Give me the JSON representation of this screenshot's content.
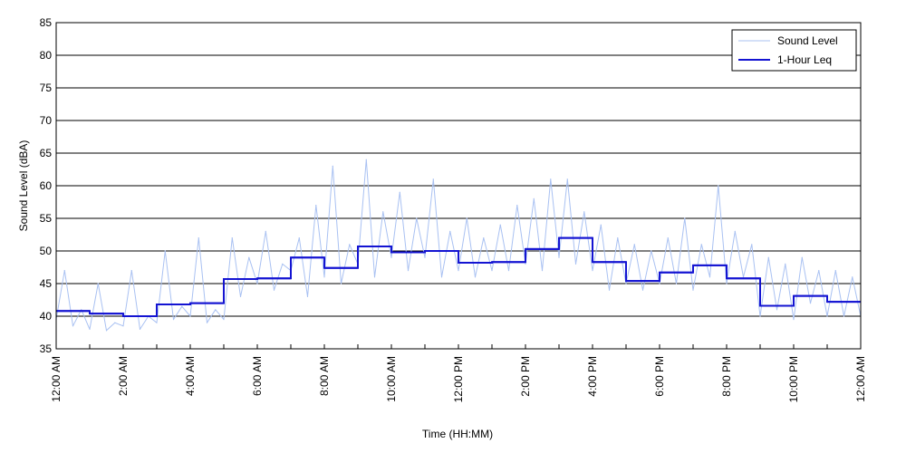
{
  "chart_data": {
    "type": "line",
    "xlabel": "Time (HH:MM)",
    "ylabel": "Sound Level (dBA)",
    "ylim": [
      35,
      85
    ],
    "xlim_hours": [
      0,
      24
    ],
    "y_ticks": [
      35,
      40,
      45,
      50,
      55,
      60,
      65,
      70,
      75,
      80,
      85
    ],
    "x_ticks": [
      {
        "hour": 0,
        "label": "12:00 AM"
      },
      {
        "hour": 2,
        "label": "2:00 AM"
      },
      {
        "hour": 4,
        "label": "4:00 AM"
      },
      {
        "hour": 6,
        "label": "6:00 AM"
      },
      {
        "hour": 8,
        "label": "8:00 AM"
      },
      {
        "hour": 10,
        "label": "10:00 AM"
      },
      {
        "hour": 12,
        "label": "12:00 PM"
      },
      {
        "hour": 14,
        "label": "2:00 PM"
      },
      {
        "hour": 16,
        "label": "4:00 PM"
      },
      {
        "hour": 18,
        "label": "6:00 PM"
      },
      {
        "hour": 20,
        "label": "8:00 PM"
      },
      {
        "hour": 22,
        "label": "10:00 PM"
      },
      {
        "hour": 24,
        "label": "12:00 AM"
      }
    ],
    "grid": "horizontal",
    "legend_position": "top-right",
    "series": [
      {
        "name": "Sound Level",
        "color": "#a9c1f2",
        "style": "thin-line",
        "x_hours": [
          0.0,
          0.25,
          0.5,
          0.75,
          1.0,
          1.25,
          1.5,
          1.75,
          2.0,
          2.25,
          2.5,
          2.75,
          3.0,
          3.25,
          3.5,
          3.75,
          4.0,
          4.25,
          4.5,
          4.75,
          5.0,
          5.25,
          5.5,
          5.75,
          6.0,
          6.25,
          6.5,
          6.75,
          7.0,
          7.25,
          7.5,
          7.75,
          8.0,
          8.25,
          8.5,
          8.75,
          9.0,
          9.25,
          9.5,
          9.75,
          10.0,
          10.25,
          10.5,
          10.75,
          11.0,
          11.25,
          11.5,
          11.75,
          12.0,
          12.25,
          12.5,
          12.75,
          13.0,
          13.25,
          13.5,
          13.75,
          14.0,
          14.25,
          14.5,
          14.75,
          15.0,
          15.25,
          15.5,
          15.75,
          16.0,
          16.25,
          16.5,
          16.75,
          17.0,
          17.25,
          17.5,
          17.75,
          18.0,
          18.25,
          18.5,
          18.75,
          19.0,
          19.25,
          19.5,
          19.75,
          20.0,
          20.25,
          20.5,
          20.75,
          21.0,
          21.25,
          21.5,
          21.75,
          22.0,
          22.25,
          22.5,
          22.75,
          23.0,
          23.25,
          23.5,
          23.75,
          24.0
        ],
        "values": [
          39.5,
          47,
          38.5,
          41,
          38,
          45,
          37.8,
          39,
          38.5,
          47,
          38,
          40,
          39,
          50,
          39.5,
          41.5,
          40,
          52,
          39,
          41,
          39.5,
          52,
          43,
          49,
          45,
          53,
          44,
          48,
          47,
          52,
          43,
          57,
          46,
          63,
          45,
          51,
          48,
          64,
          46,
          56,
          49,
          59,
          47,
          55,
          49,
          61,
          46,
          53,
          47,
          55,
          46,
          52,
          47,
          54,
          47,
          57,
          48,
          58,
          47,
          61,
          49,
          61,
          48,
          56,
          47,
          54,
          44,
          52,
          45,
          51,
          44,
          50,
          45,
          52,
          45,
          55,
          44,
          51,
          46,
          60,
          45,
          53,
          46,
          51,
          40,
          49,
          41,
          48,
          39.5,
          49,
          42,
          47,
          40,
          47,
          40,
          46,
          40
        ]
      },
      {
        "name": "1-Hour Leq",
        "color": "#1414d2",
        "style": "step",
        "values": [
          40.8,
          40.4,
          40.0,
          41.8,
          42.0,
          45.7,
          45.8,
          49.0,
          47.4,
          50.7,
          49.8,
          50.0,
          48.2,
          48.3,
          50.3,
          52.0,
          48.3,
          45.4,
          46.7,
          47.8,
          45.8,
          41.6,
          43.1,
          42.2
        ]
      }
    ]
  }
}
